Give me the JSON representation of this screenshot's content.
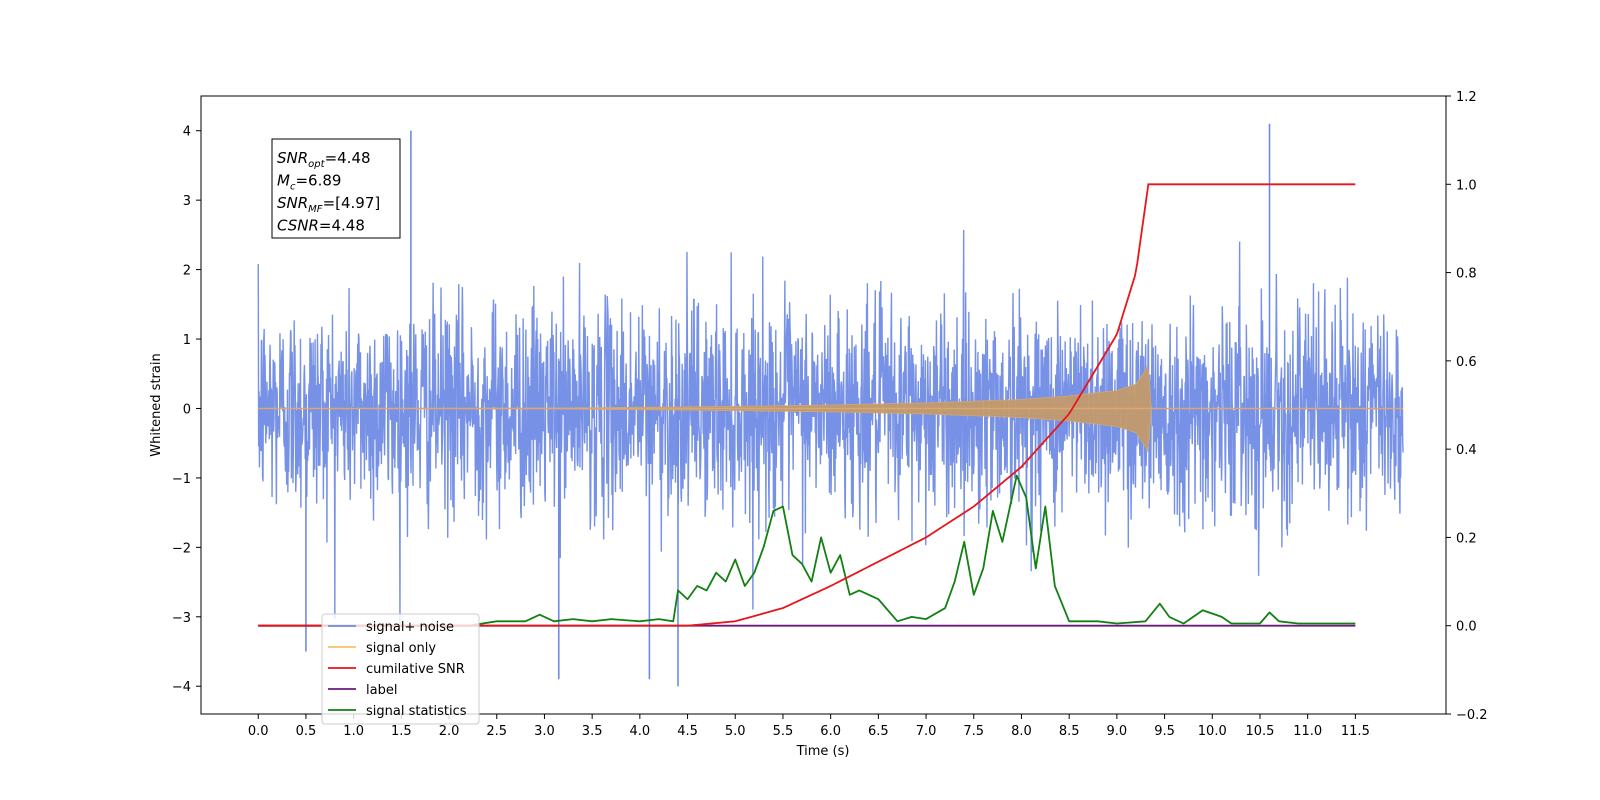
{
  "chart_data": {
    "type": "line",
    "xlabel": "Time (s)",
    "ylabel": "Whitened strain",
    "xlim": [
      -0.6,
      12.45
    ],
    "ylim": [
      -4.4,
      4.5
    ],
    "y2lim": [
      -0.2,
      1.2
    ],
    "grid": false,
    "legend_position": "lower-left",
    "x_ticks": [
      "0.0",
      "0.5",
      "1.0",
      "1.5",
      "2.0",
      "2.5",
      "3.0",
      "3.5",
      "4.0",
      "4.5",
      "5.0",
      "5.5",
      "6.0",
      "6.5",
      "7.0",
      "7.5",
      "8.0",
      "8.5",
      "9.0",
      "9.5",
      "10.0",
      "10.5",
      "11.0",
      "11.5"
    ],
    "y_ticks": [
      "−4",
      "−3",
      "−2",
      "−1",
      "0",
      "1",
      "2",
      "3",
      "4"
    ],
    "y2_ticks": [
      "−0.2",
      "0.0",
      "0.2",
      "0.4",
      "0.6",
      "0.8",
      "1.0",
      "1.2"
    ],
    "annotation": [
      {
        "main": "SNR",
        "sub": "opt",
        "value": "=4.48"
      },
      {
        "main": "M",
        "sub": "c",
        "value": "=6.89"
      },
      {
        "main": "SNR",
        "sub": "MF",
        "value": "=[4.97]"
      },
      {
        "main": "CSNR",
        "sub": "",
        "value": "=4.48"
      }
    ],
    "series": [
      {
        "name": "signal+ noise",
        "color": "#6f8be4",
        "axis": "left",
        "x_range": [
          0.0,
          12.0
        ],
        "noise_sigma": 0.75,
        "peak_values": [
          [
            1.6,
            4.0
          ],
          [
            10.6,
            4.1
          ],
          [
            0.5,
            -3.5
          ],
          [
            4.4,
            -4.0
          ],
          [
            3.15,
            -3.9
          ],
          [
            4.1,
            -3.9
          ]
        ]
      },
      {
        "name": "signal only",
        "color": "#f5c26b",
        "axis": "left",
        "envelope_points": [
          [
            0.0,
            0.0
          ],
          [
            3.0,
            0.005
          ],
          [
            5.0,
            0.03
          ],
          [
            6.0,
            0.05
          ],
          [
            7.0,
            0.08
          ],
          [
            8.0,
            0.13
          ],
          [
            8.5,
            0.18
          ],
          [
            9.0,
            0.26
          ],
          [
            9.2,
            0.35
          ],
          [
            9.3,
            0.55
          ],
          [
            9.33,
            0.65
          ],
          [
            9.36,
            0.0
          ],
          [
            12.0,
            0.0
          ]
        ]
      },
      {
        "name": "cumilative SNR",
        "color": "#e8151b",
        "axis": "right",
        "points": [
          [
            0.0,
            0.0
          ],
          [
            4.5,
            0.0
          ],
          [
            5.0,
            0.01
          ],
          [
            5.5,
            0.04
          ],
          [
            6.0,
            0.09
          ],
          [
            6.5,
            0.145
          ],
          [
            7.0,
            0.2
          ],
          [
            7.5,
            0.27
          ],
          [
            8.0,
            0.36
          ],
          [
            8.5,
            0.48
          ],
          [
            9.0,
            0.66
          ],
          [
            9.2,
            0.8
          ],
          [
            9.33,
            1.0
          ],
          [
            11.5,
            1.0
          ]
        ]
      },
      {
        "name": "label",
        "color": "#6b1a7a",
        "axis": "right",
        "points": [
          [
            0.0,
            0.0
          ],
          [
            11.5,
            0.0
          ]
        ]
      },
      {
        "name": "signal statistics",
        "color": "#128012",
        "axis": "right",
        "points": [
          [
            0.0,
            0.0
          ],
          [
            2.2,
            0.0
          ],
          [
            2.5,
            0.01
          ],
          [
            2.8,
            0.01
          ],
          [
            2.95,
            0.025
          ],
          [
            3.1,
            0.01
          ],
          [
            3.3,
            0.015
          ],
          [
            3.5,
            0.01
          ],
          [
            3.7,
            0.015
          ],
          [
            4.0,
            0.01
          ],
          [
            4.2,
            0.015
          ],
          [
            4.35,
            0.01
          ],
          [
            4.4,
            0.08
          ],
          [
            4.5,
            0.06
          ],
          [
            4.6,
            0.09
          ],
          [
            4.7,
            0.08
          ],
          [
            4.8,
            0.12
          ],
          [
            4.9,
            0.1
          ],
          [
            5.0,
            0.15
          ],
          [
            5.1,
            0.09
          ],
          [
            5.2,
            0.12
          ],
          [
            5.3,
            0.18
          ],
          [
            5.4,
            0.26
          ],
          [
            5.5,
            0.27
          ],
          [
            5.6,
            0.16
          ],
          [
            5.7,
            0.14
          ],
          [
            5.8,
            0.1
          ],
          [
            5.9,
            0.2
          ],
          [
            6.0,
            0.12
          ],
          [
            6.1,
            0.16
          ],
          [
            6.2,
            0.07
          ],
          [
            6.3,
            0.08
          ],
          [
            6.5,
            0.06
          ],
          [
            6.6,
            0.035
          ],
          [
            6.7,
            0.01
          ],
          [
            6.85,
            0.02
          ],
          [
            7.0,
            0.015
          ],
          [
            7.2,
            0.04
          ],
          [
            7.3,
            0.1
          ],
          [
            7.4,
            0.19
          ],
          [
            7.5,
            0.07
          ],
          [
            7.6,
            0.13
          ],
          [
            7.7,
            0.26
          ],
          [
            7.8,
            0.19
          ],
          [
            7.95,
            0.34
          ],
          [
            8.05,
            0.29
          ],
          [
            8.15,
            0.13
          ],
          [
            8.25,
            0.27
          ],
          [
            8.35,
            0.09
          ],
          [
            8.5,
            0.01
          ],
          [
            8.8,
            0.01
          ],
          [
            9.0,
            0.005
          ],
          [
            9.3,
            0.01
          ],
          [
            9.45,
            0.05
          ],
          [
            9.55,
            0.02
          ],
          [
            9.7,
            0.005
          ],
          [
            9.9,
            0.035
          ],
          [
            10.1,
            0.02
          ],
          [
            10.2,
            0.005
          ],
          [
            10.5,
            0.005
          ],
          [
            10.6,
            0.03
          ],
          [
            10.7,
            0.01
          ],
          [
            10.9,
            0.005
          ],
          [
            11.5,
            0.005
          ]
        ]
      }
    ]
  }
}
